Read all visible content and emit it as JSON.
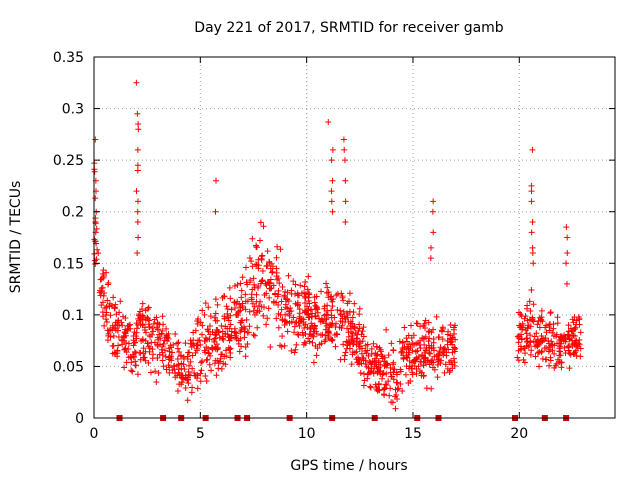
{
  "chart_data": {
    "type": "scatter",
    "title": "Day 221 of 2017, SRMTID for receiver gamb",
    "xlabel": "GPS time / hours",
    "ylabel": "SRMTID / TECUs",
    "xlim": [
      0,
      24.5
    ],
    "ylim": [
      0,
      0.35
    ],
    "xticks": [
      0,
      5,
      10,
      15,
      20
    ],
    "yticks": [
      0,
      0.05,
      0.1,
      0.15,
      0.2,
      0.25,
      0.3,
      0.35
    ],
    "ytick_labels": [
      "0",
      "0.05",
      "0.1",
      "0.15",
      "0.2",
      "0.25",
      "0.3",
      "0.35"
    ],
    "grid": true,
    "marker": "plus",
    "color": "#ff0000",
    "gap_marker_color": "#cc0000",
    "gap_markers_x": [
      1.2,
      3.25,
      4.1,
      5.25,
      6.75,
      7.2,
      9.2,
      11.2,
      13.2,
      15.2,
      16.2,
      19.8,
      21.2,
      22.2
    ],
    "envelope": [
      {
        "x": 0.0,
        "lo": 0.12,
        "hi": 0.27
      },
      {
        "x": 0.3,
        "lo": 0.09,
        "hi": 0.17
      },
      {
        "x": 0.8,
        "lo": 0.06,
        "hi": 0.13
      },
      {
        "x": 1.4,
        "lo": 0.05,
        "hi": 0.11
      },
      {
        "x": 1.9,
        "lo": 0.04,
        "hi": 0.1
      },
      {
        "x": 2.2,
        "lo": 0.05,
        "hi": 0.13
      },
      {
        "x": 2.8,
        "lo": 0.04,
        "hi": 0.12
      },
      {
        "x": 3.5,
        "lo": 0.03,
        "hi": 0.1
      },
      {
        "x": 4.2,
        "lo": 0.01,
        "hi": 0.08
      },
      {
        "x": 4.8,
        "lo": 0.02,
        "hi": 0.1
      },
      {
        "x": 5.5,
        "lo": 0.03,
        "hi": 0.12
      },
      {
        "x": 6.3,
        "lo": 0.04,
        "hi": 0.13
      },
      {
        "x": 7.0,
        "lo": 0.06,
        "hi": 0.16
      },
      {
        "x": 7.8,
        "lo": 0.08,
        "hi": 0.19
      },
      {
        "x": 8.5,
        "lo": 0.07,
        "hi": 0.17
      },
      {
        "x": 9.2,
        "lo": 0.05,
        "hi": 0.15
      },
      {
        "x": 10.0,
        "lo": 0.06,
        "hi": 0.14
      },
      {
        "x": 10.7,
        "lo": 0.05,
        "hi": 0.13
      },
      {
        "x": 11.5,
        "lo": 0.06,
        "hi": 0.14
      },
      {
        "x": 12.2,
        "lo": 0.04,
        "hi": 0.12
      },
      {
        "x": 12.8,
        "lo": 0.02,
        "hi": 0.09
      },
      {
        "x": 13.5,
        "lo": 0.01,
        "hi": 0.08
      },
      {
        "x": 14.2,
        "lo": 0.01,
        "hi": 0.08
      },
      {
        "x": 14.8,
        "lo": 0.02,
        "hi": 0.09
      },
      {
        "x": 15.5,
        "lo": 0.03,
        "hi": 0.1
      },
      {
        "x": 16.2,
        "lo": 0.03,
        "hi": 0.11
      },
      {
        "x": 17.0,
        "lo": 0.04,
        "hi": 0.09
      },
      {
        "x": 19.9,
        "lo": 0.05,
        "hi": 0.11
      },
      {
        "x": 20.5,
        "lo": 0.05,
        "hi": 0.13
      },
      {
        "x": 21.2,
        "lo": 0.04,
        "hi": 0.1
      },
      {
        "x": 22.0,
        "lo": 0.04,
        "hi": 0.1
      },
      {
        "x": 22.8,
        "lo": 0.05,
        "hi": 0.11
      }
    ],
    "segments": [
      {
        "x0": 0.0,
        "x1": 17.0
      },
      {
        "x0": 19.9,
        "x1": 22.9
      }
    ],
    "spikes": [
      {
        "x": 0.05,
        "values": [
          0.27,
          0.23,
          0.22,
          0.2,
          0.19,
          0.18
        ]
      },
      {
        "x": 2.05,
        "values": [
          0.325,
          0.295,
          0.285,
          0.28,
          0.26,
          0.245,
          0.24,
          0.22,
          0.21,
          0.2,
          0.19,
          0.175,
          0.16
        ]
      },
      {
        "x": 5.7,
        "values": [
          0.23,
          0.2
        ]
      },
      {
        "x": 11.0,
        "values": [
          0.287
        ]
      },
      {
        "x": 11.2,
        "values": [
          0.26,
          0.25,
          0.23,
          0.22,
          0.21,
          0.2
        ]
      },
      {
        "x": 11.8,
        "values": [
          0.27,
          0.26,
          0.25,
          0.23,
          0.21,
          0.19
        ]
      },
      {
        "x": 15.9,
        "values": [
          0.21,
          0.2,
          0.18,
          0.165,
          0.155
        ]
      },
      {
        "x": 20.6,
        "values": [
          0.26,
          0.225,
          0.22,
          0.21,
          0.19,
          0.18,
          0.165,
          0.16,
          0.15
        ]
      },
      {
        "x": 22.2,
        "values": [
          0.185,
          0.175,
          0.16,
          0.15,
          0.13
        ]
      }
    ],
    "point_count": 1500
  }
}
